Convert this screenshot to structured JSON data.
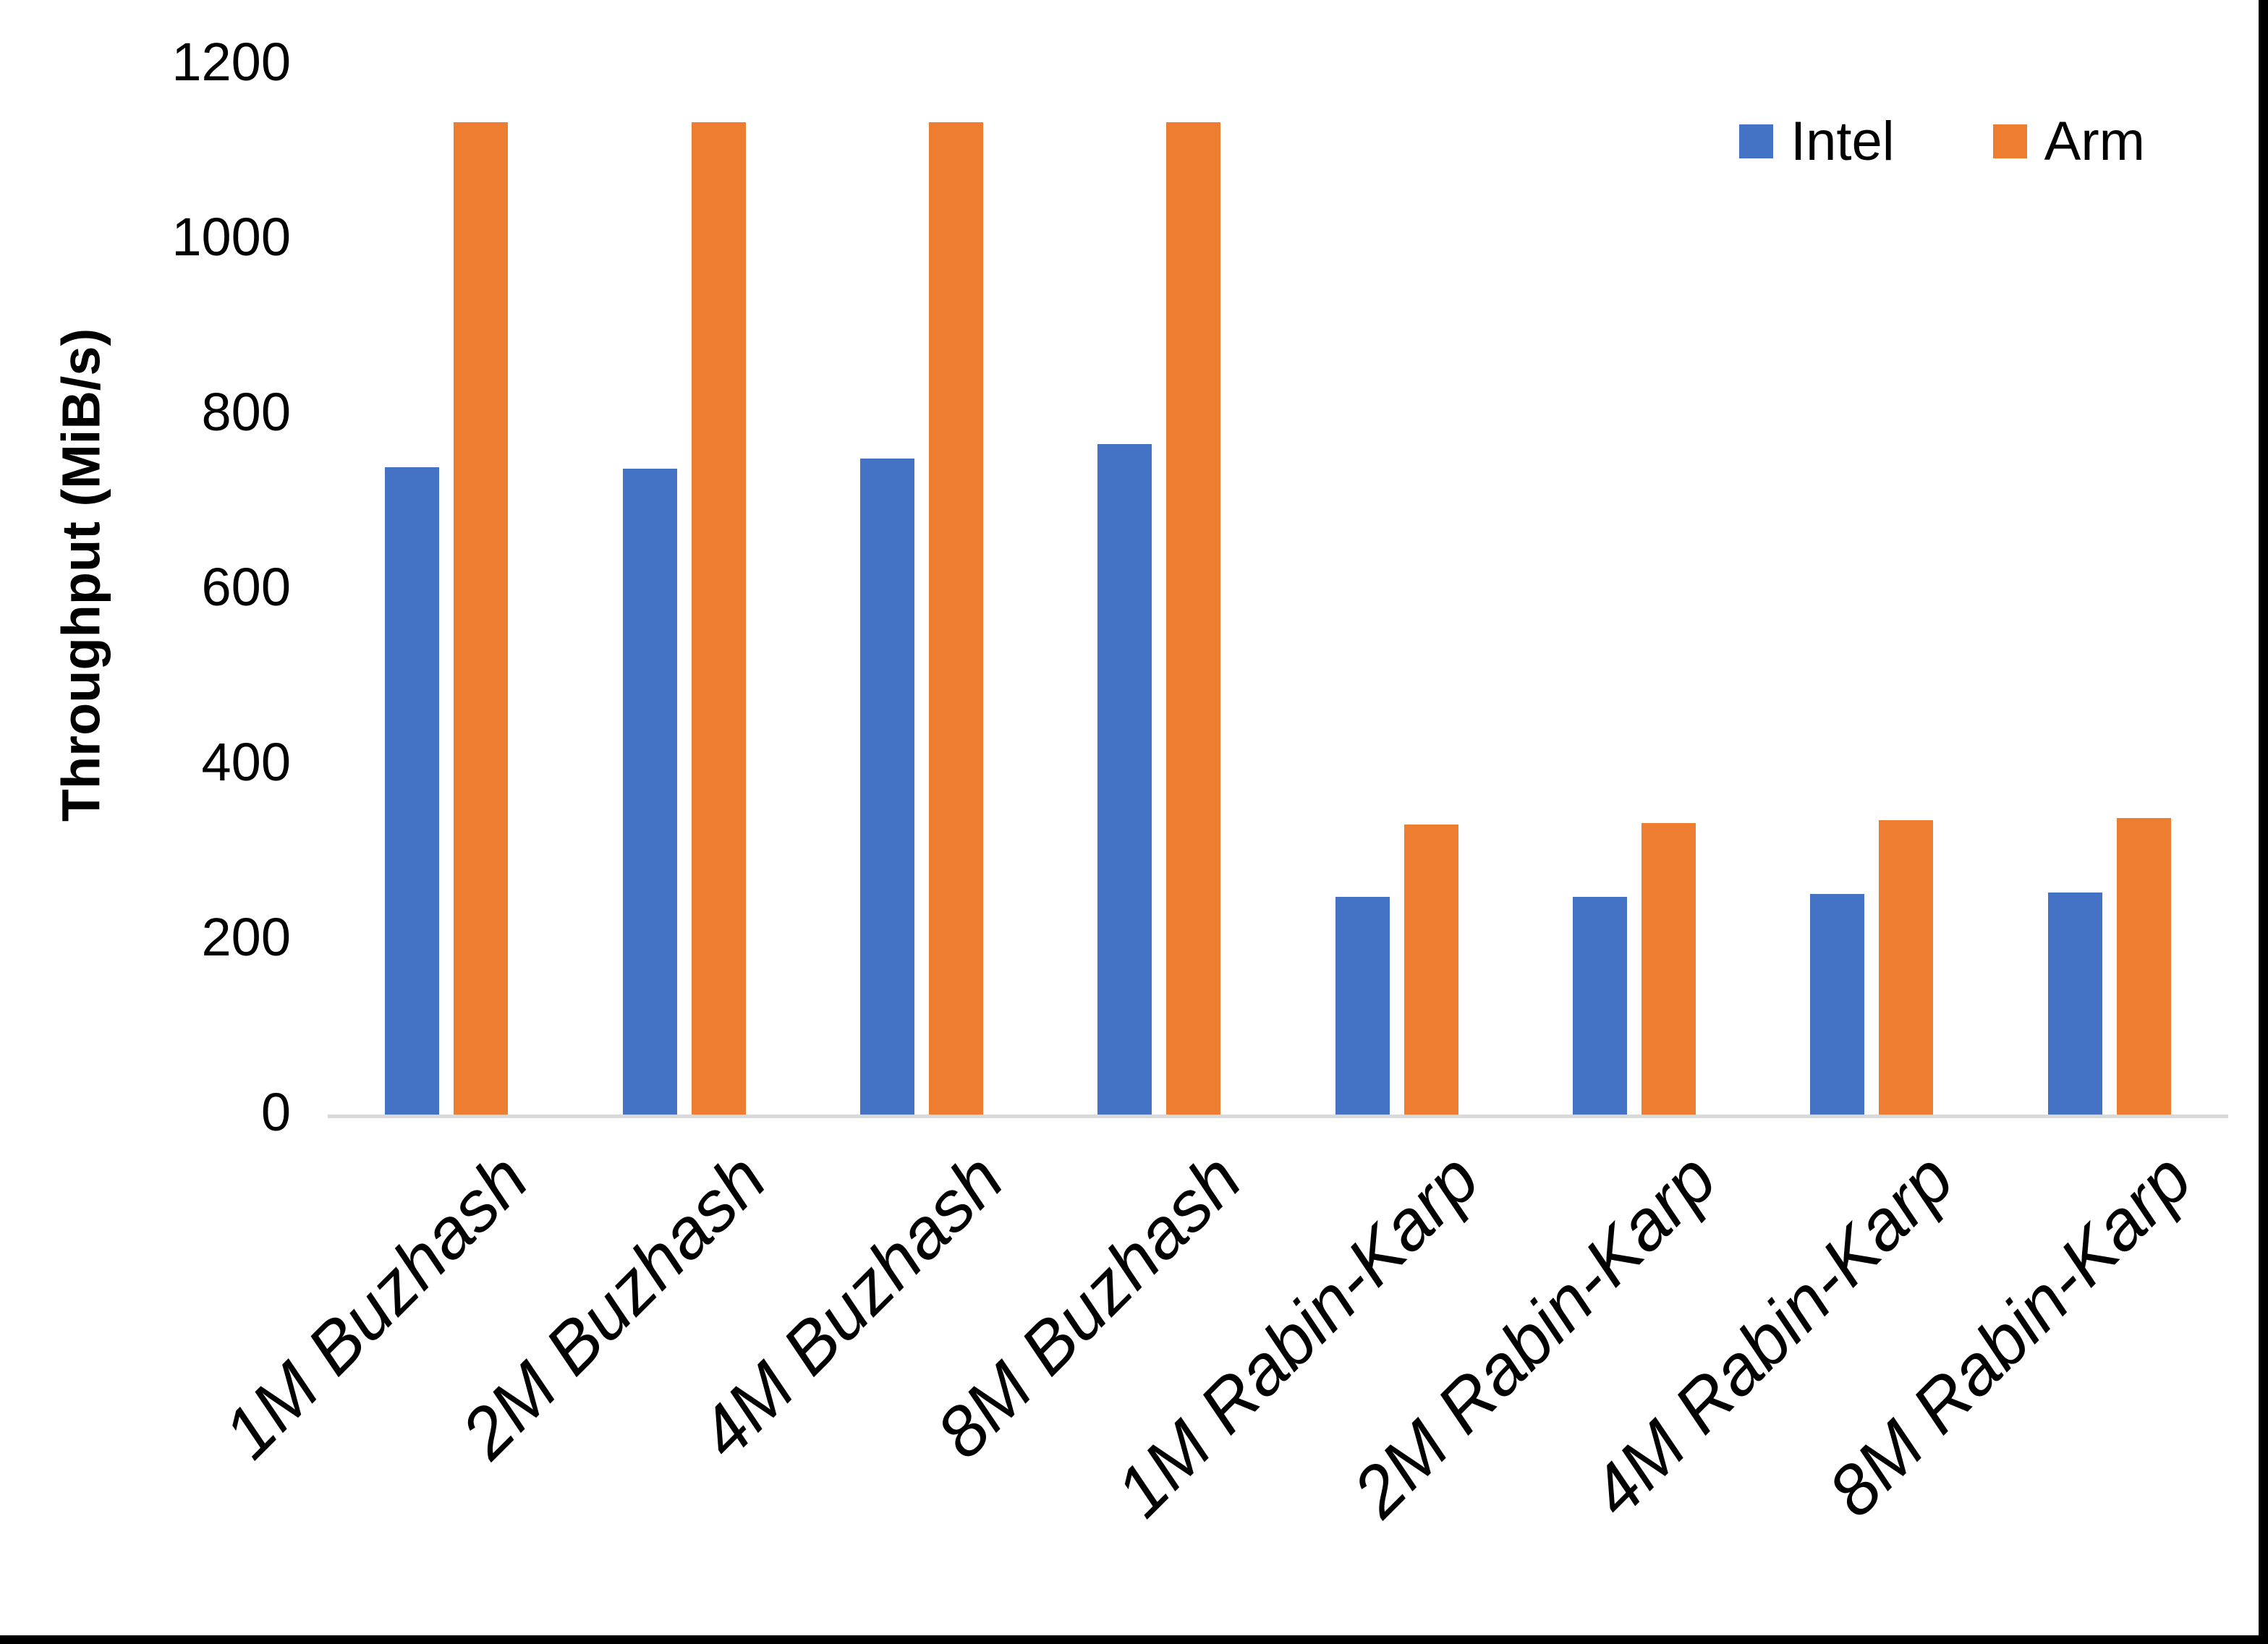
{
  "chart_data": {
    "type": "bar",
    "title": "",
    "xlabel": "",
    "ylabel": "Throughput (MiB/s)",
    "categories": [
      "1M Buzhash",
      "2M Buzhash",
      "4M Buzhash",
      "8M Buzhash",
      "1M Rabin-Karp",
      "2M Rabin-Karp",
      "4M Rabin-Karp",
      "8M Rabin-Karp"
    ],
    "series": [
      {
        "name": "Intel",
        "color": "#4472C4",
        "values": [
          740,
          738,
          750,
          766,
          249,
          249,
          252,
          254
        ]
      },
      {
        "name": "Arm",
        "color": "#ED7D31",
        "values": [
          1134,
          1134,
          1134,
          1134,
          331,
          333,
          336,
          339
        ]
      }
    ],
    "ylim": [
      0,
      1200
    ],
    "yticks": [
      0,
      200,
      400,
      600,
      800,
      1000,
      1200
    ],
    "grid": false,
    "legend_position": "top-right",
    "axis_line_color": "#D9D9D9",
    "text_color": "#000000",
    "background_color": "#FFFFFF",
    "frame": {
      "right_border_color": "#000000",
      "bottom_border_color": "#000000"
    }
  }
}
